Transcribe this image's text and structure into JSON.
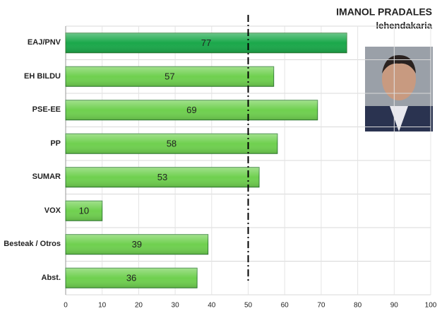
{
  "chart_data": {
    "type": "hbar",
    "title": "IMANOL PRADALES",
    "subtitle": "lehendakaria",
    "categories": [
      "EAJ/PNV",
      "EH BILDU",
      "PSE-EE",
      "PP",
      "SUMAR",
      "VOX",
      "Besteak / Otros",
      "Abst."
    ],
    "values": [
      77,
      57,
      69,
      58,
      53,
      10,
      39,
      36
    ],
    "colors": [
      "#1aa84a",
      "#6fd04f",
      "#6fd04f",
      "#6fd04f",
      "#6fd04f",
      "#6fd04f",
      "#6fd04f",
      "#6fd04f"
    ],
    "xlim": [
      0,
      100
    ],
    "xticks": [
      0,
      10,
      20,
      30,
      40,
      50,
      60,
      70,
      80,
      90,
      100
    ],
    "majority_line": 50,
    "grid": true
  }
}
